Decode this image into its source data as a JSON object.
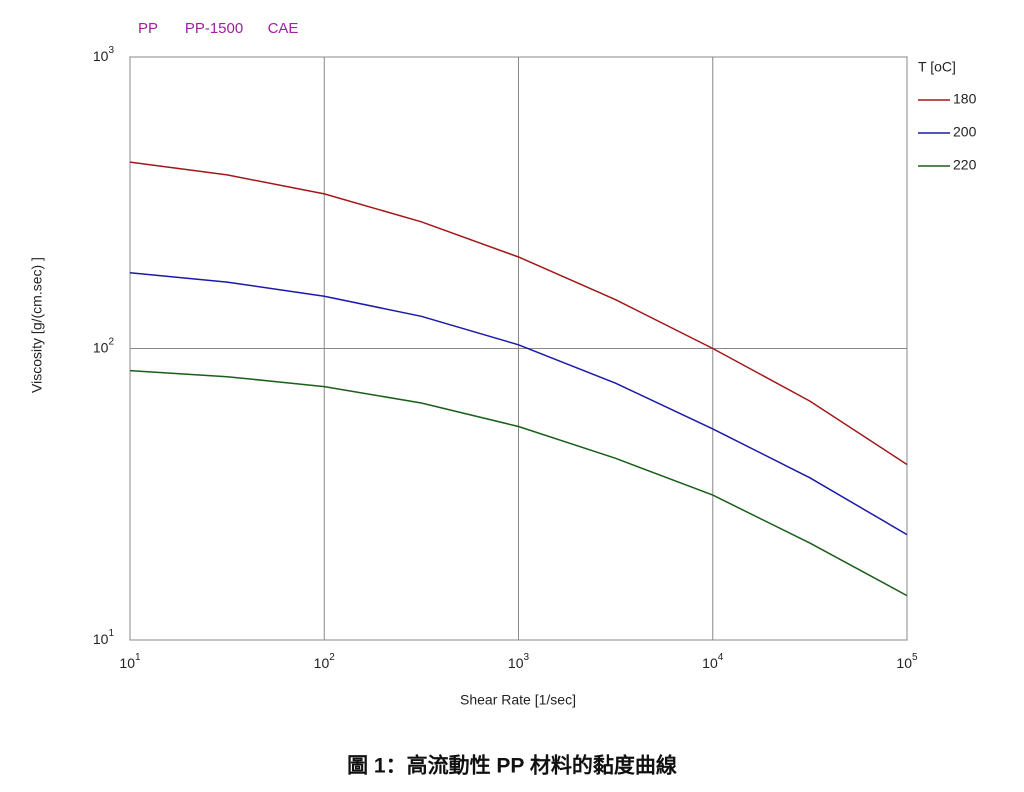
{
  "chart_data": {
    "type": "line",
    "header": [
      "PP",
      "PP-1500",
      "CAE"
    ],
    "xlabel": "Shear Rate [1/sec]",
    "ylabel": "Viscosity [g/(cm.sec) ]",
    "legend_title": "T [oC]",
    "caption": "圖 1：高流動性 PP 材料的黏度曲線",
    "log_x": true,
    "log_y": true,
    "grid": true,
    "xlim": [
      10,
      100000
    ],
    "ylim": [
      10,
      1000
    ],
    "xticks": [
      {
        "value": 10,
        "label": "10",
        "exp": "1"
      },
      {
        "value": 100,
        "label": "10",
        "exp": "2"
      },
      {
        "value": 1000,
        "label": "10",
        "exp": "3"
      },
      {
        "value": 10000,
        "label": "10",
        "exp": "4"
      },
      {
        "value": 100000,
        "label": "10",
        "exp": "5"
      }
    ],
    "yticks": [
      {
        "value": 10,
        "label": "10",
        "exp": "1"
      },
      {
        "value": 100,
        "label": "10",
        "exp": "2"
      },
      {
        "value": 1000,
        "label": "10",
        "exp": "3"
      }
    ],
    "x": [
      10,
      31.6,
      100,
      316,
      1000,
      3162,
      10000,
      31623,
      100000
    ],
    "series": [
      {
        "name": "180",
        "color": "#a01818",
        "values": [
          436,
          394,
          339,
          272,
          206,
          147,
          100,
          66,
          40
        ]
      },
      {
        "name": "200",
        "color": "#1a1aa8",
        "values": [
          182,
          169,
          151,
          129,
          103,
          76,
          53,
          36,
          23
        ]
      },
      {
        "name": "220",
        "color": "#1a5e1a",
        "values": [
          84,
          80,
          74,
          65,
          54,
          42,
          31.4,
          21.5,
          14.2
        ]
      }
    ]
  }
}
